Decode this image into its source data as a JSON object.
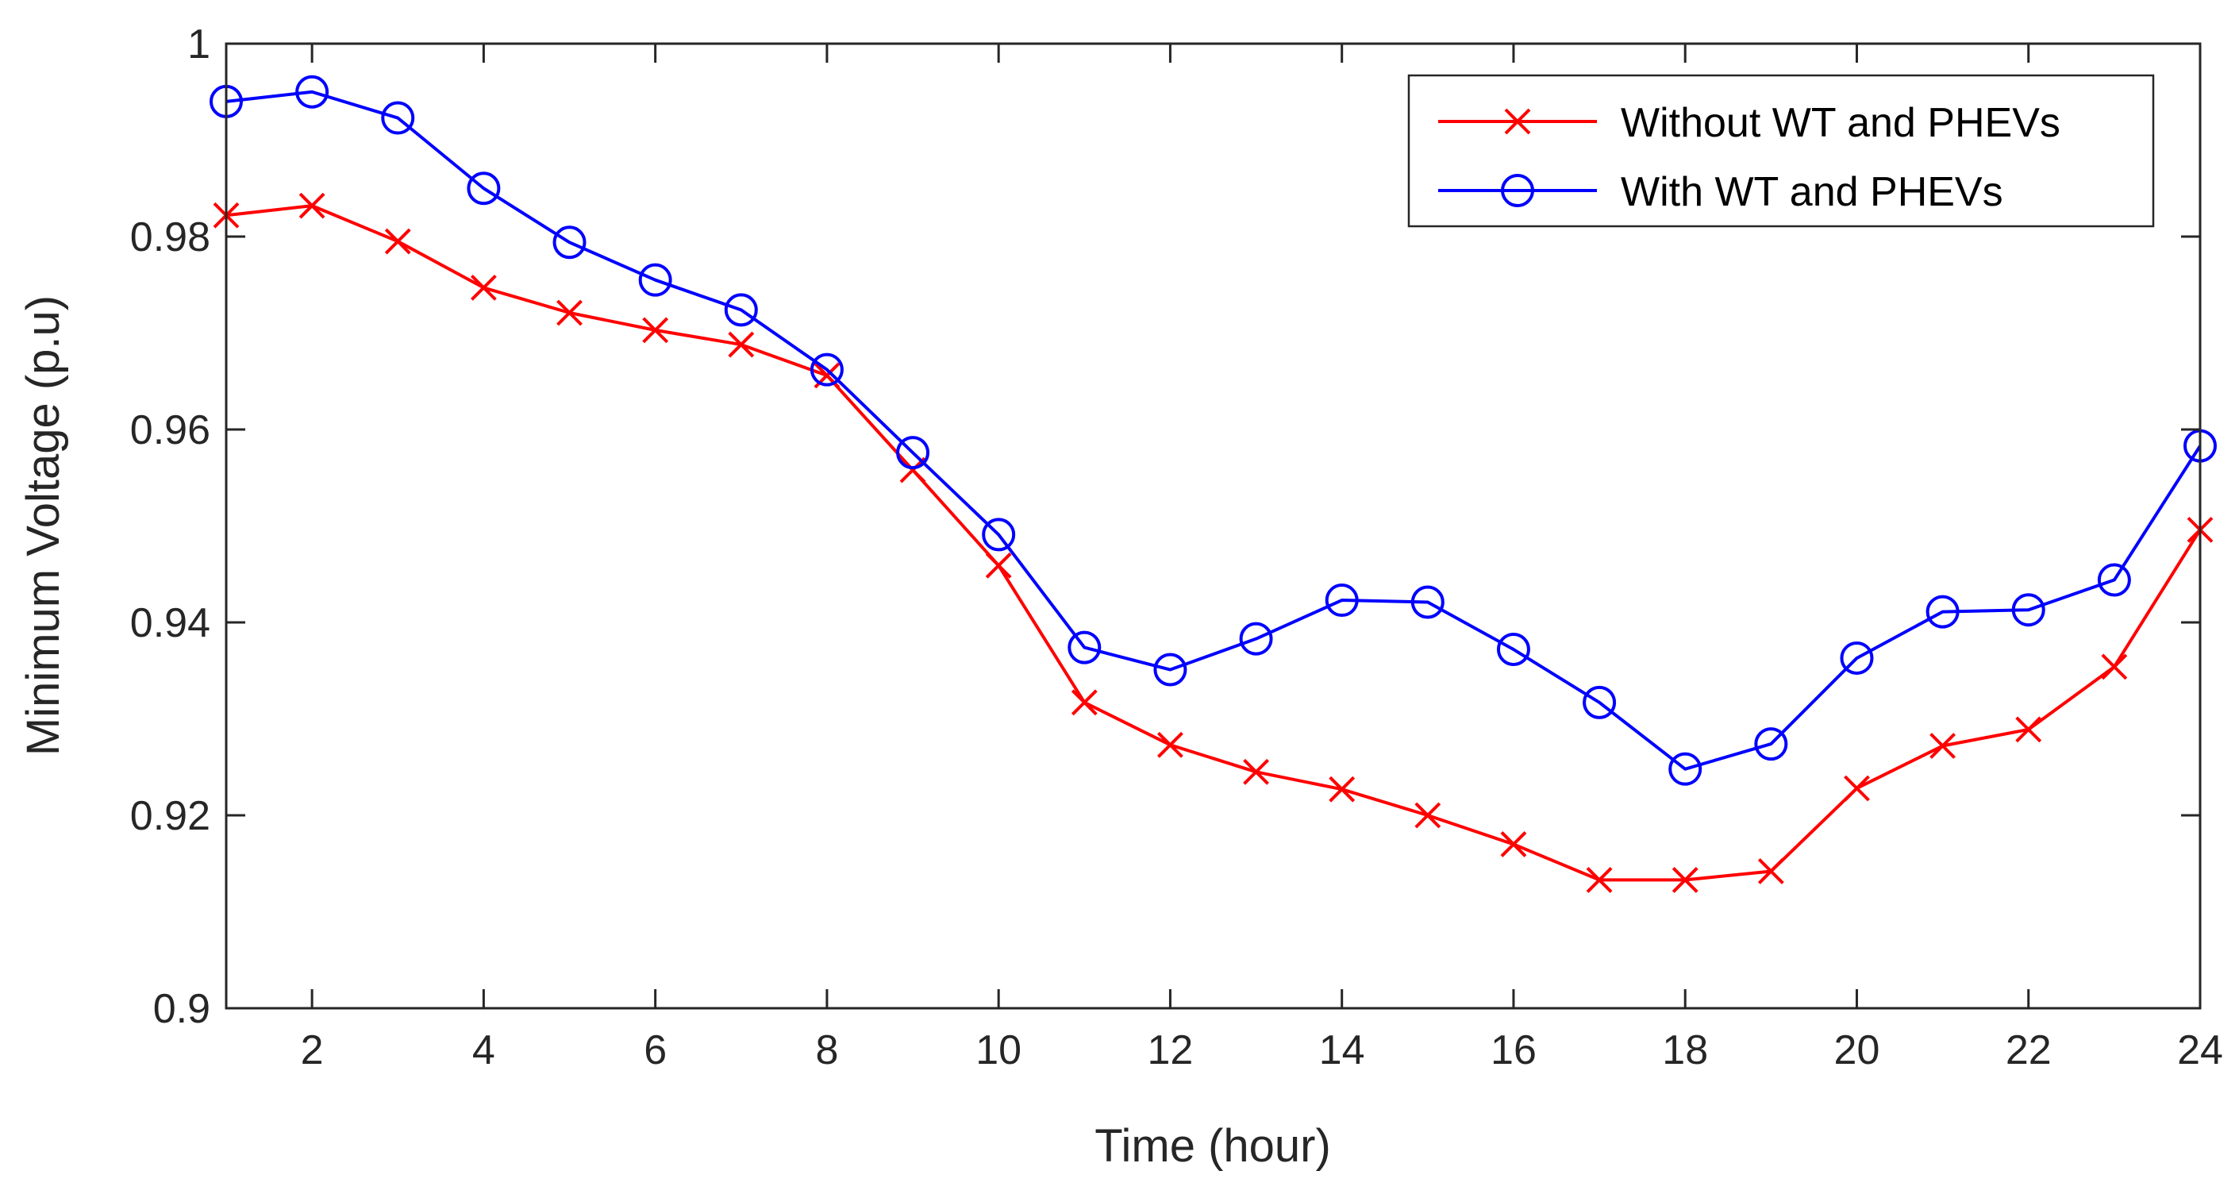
{
  "chart_data": {
    "type": "line",
    "title": "",
    "xlabel": "Time (hour)",
    "ylabel": "Minimum Voltage (p.u)",
    "xlim": [
      1,
      24
    ],
    "ylim": [
      0.9,
      1.0
    ],
    "xticks": [
      2,
      4,
      6,
      8,
      10,
      12,
      14,
      16,
      18,
      20,
      22,
      24
    ],
    "xtick_labels": [
      "2",
      "4",
      "6",
      "8",
      "10",
      "12",
      "14",
      "16",
      "18",
      "20",
      "22",
      "24"
    ],
    "yticks": [
      0.9,
      0.92,
      0.94,
      0.96,
      0.98,
      1.0
    ],
    "ytick_labels": [
      "0.9",
      "0.92",
      "0.94",
      "0.96",
      "0.98",
      "1"
    ],
    "grid": false,
    "legend_position": "top-right",
    "x": [
      1,
      2,
      3,
      4,
      5,
      6,
      7,
      8,
      9,
      10,
      11,
      12,
      13,
      14,
      15,
      16,
      17,
      18,
      19,
      20,
      21,
      22,
      23,
      24
    ],
    "series": [
      {
        "name": "Without WT and PHEVs",
        "color": "#ff0000",
        "marker": "x",
        "values": [
          0.9822,
          0.9832,
          0.9795,
          0.9747,
          0.9721,
          0.9703,
          0.9688,
          0.9656,
          0.9558,
          0.9459,
          0.9317,
          0.9273,
          0.9245,
          0.9227,
          0.92,
          0.917,
          0.9133,
          0.9133,
          0.9142,
          0.9228,
          0.9272,
          0.9289,
          0.9354,
          0.9496
        ]
      },
      {
        "name": "With WT and PHEVs",
        "color": "#0000ff",
        "marker": "o",
        "values": [
          0.994,
          0.995,
          0.9923,
          0.985,
          0.9794,
          0.9755,
          0.9724,
          0.9662,
          0.9576,
          0.9491,
          0.9374,
          0.9351,
          0.9383,
          0.9423,
          0.9421,
          0.9372,
          0.9317,
          0.9248,
          0.9274,
          0.9363,
          0.9411,
          0.9413,
          0.9444,
          0.9583
        ]
      }
    ]
  }
}
